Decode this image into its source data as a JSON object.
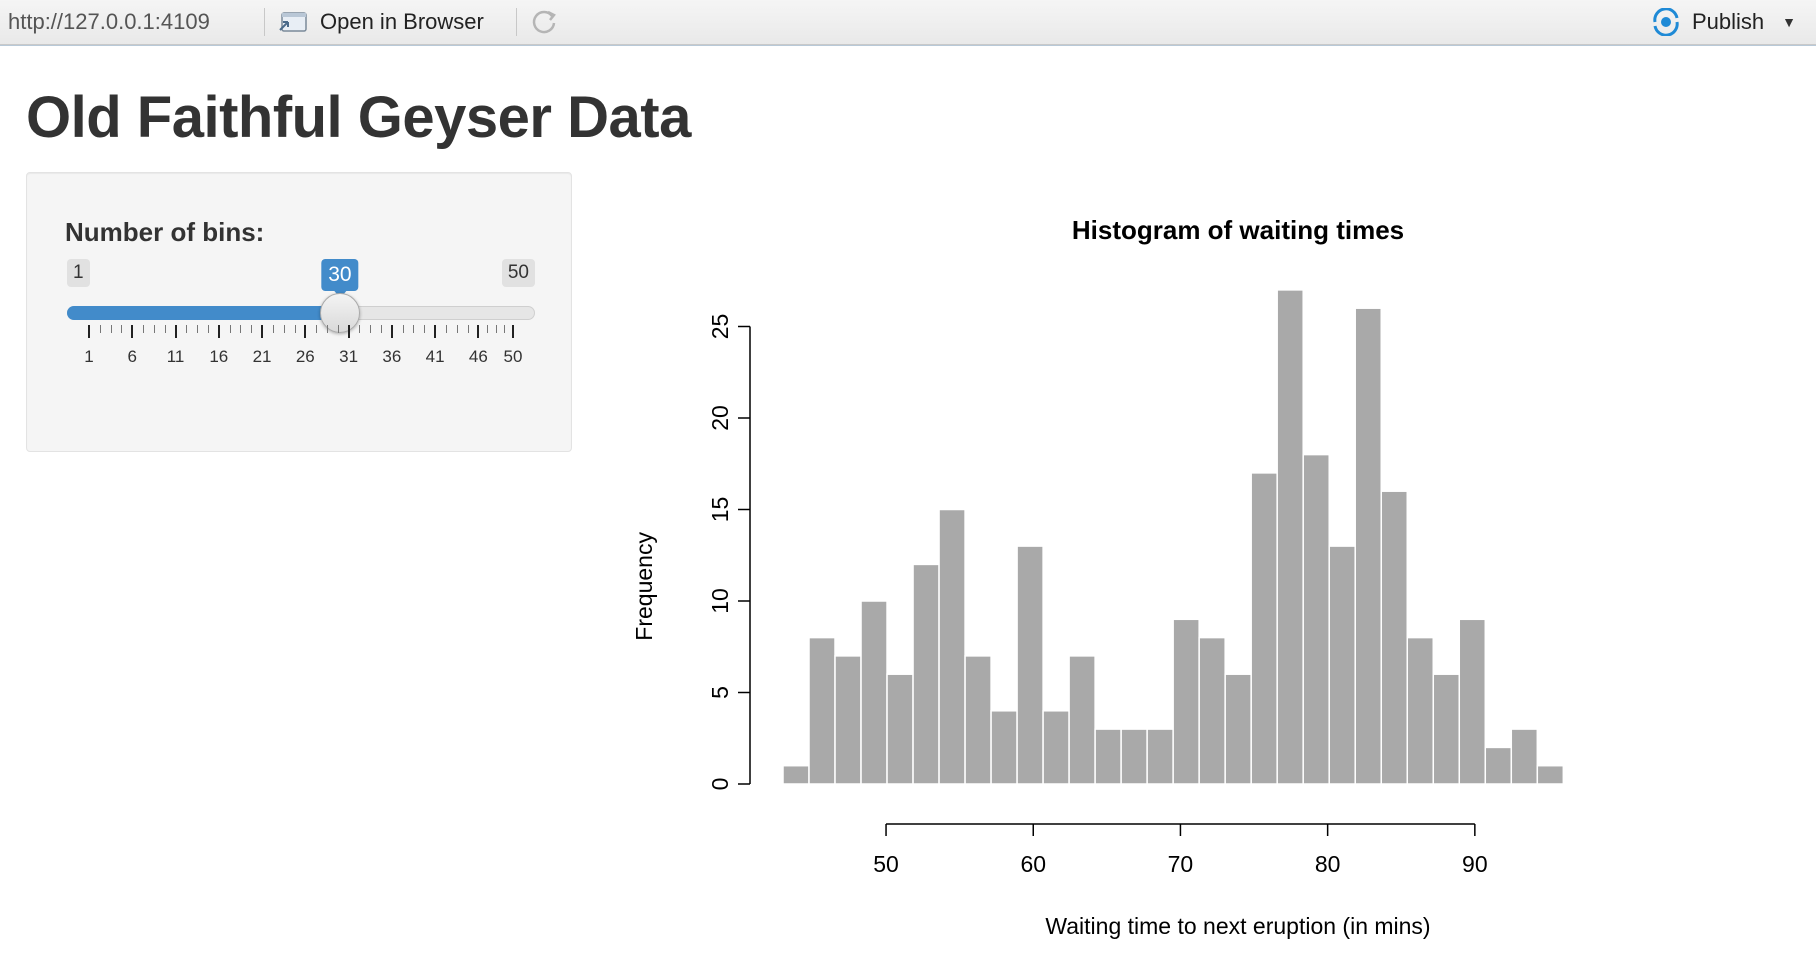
{
  "toolbar": {
    "url": "http://127.0.0.1:4109",
    "open_in_browser": "Open in Browser",
    "publish": "Publish",
    "publish_color": "#1f8ad6"
  },
  "page": {
    "title": "Old Faithful Geyser Data"
  },
  "sidebar": {
    "slider_label": "Number of bins:",
    "min": 1,
    "max": 50,
    "value": 30,
    "min_label": "1",
    "max_label": "50",
    "value_label": "30",
    "tick_labels": [
      "1",
      "6",
      "11",
      "16",
      "21",
      "26",
      "31",
      "36",
      "41",
      "46",
      "50"
    ],
    "accent_color": "#428bca"
  },
  "chart_data": {
    "type": "bar",
    "title": "Histogram of waiting times",
    "xlabel": "Waiting time to next eruption (in mins)",
    "ylabel": "Frequency",
    "bin_start": 43,
    "bin_width": 1.767,
    "values": [
      1,
      8,
      7,
      10,
      6,
      12,
      15,
      7,
      4,
      13,
      4,
      7,
      3,
      3,
      3,
      9,
      8,
      6,
      17,
      27,
      18,
      13,
      26,
      16,
      8,
      6,
      9,
      2,
      3,
      1
    ],
    "xlim": [
      43,
      96
    ],
    "ylim": [
      0,
      27
    ],
    "xticks": [
      50,
      60,
      70,
      80,
      90
    ],
    "xtick_labels": [
      "50",
      "60",
      "70",
      "80",
      "90"
    ],
    "yticks": [
      0,
      5,
      10,
      15,
      20,
      25
    ],
    "ytick_labels": [
      "0",
      "5",
      "10",
      "15",
      "20",
      "25"
    ],
    "bar_color": "#a9a9a9",
    "bar_border": "#ffffff"
  }
}
